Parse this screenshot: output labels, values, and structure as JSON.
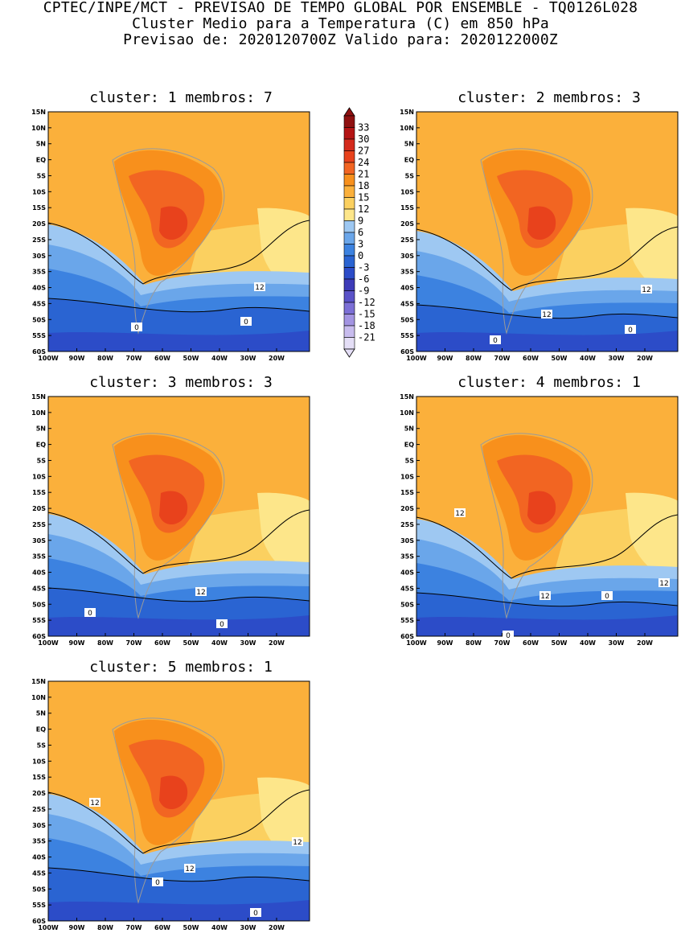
{
  "header": {
    "line1": "CPTEC/INPE/MCT - PREVISAO DE TEMPO GLOBAL POR ENSEMBLE - TQ0126L028",
    "line2": "Cluster Medio para a Temperatura (C) em 850 hPa",
    "line3": "Previsao de: 2020120700Z   Valido para: 2020122000Z"
  },
  "axes": {
    "lat_labels": [
      "15N",
      "10N",
      "5N",
      "EQ",
      "5S",
      "10S",
      "15S",
      "20S",
      "25S",
      "30S",
      "35S",
      "40S",
      "45S",
      "50S",
      "55S",
      "60S"
    ],
    "lon_labels": [
      "100W",
      "90W",
      "80W",
      "70W",
      "60W",
      "50W",
      "40W",
      "30W",
      "20W"
    ]
  },
  "colorbar": {
    "labels": [
      "33",
      "30",
      "27",
      "24",
      "21",
      "18",
      "15",
      "12",
      "9",
      "6",
      "3",
      "0",
      "-3",
      "-6",
      "-9",
      "-12",
      "-15",
      "-18",
      "-21"
    ],
    "colors": [
      "#8f1010",
      "#b41414",
      "#d42a1c",
      "#e8421c",
      "#f26522",
      "#f8901c",
      "#fbb03b",
      "#fbd060",
      "#fde68a",
      "#9ec8f2",
      "#6aa6ea",
      "#3c82e0",
      "#2a64d2",
      "#2c4cc8",
      "#3d3bb8",
      "#5a52c8",
      "#7c6fd6",
      "#a394e2",
      "#c8bcee",
      "#e4def6"
    ]
  },
  "panels": [
    {
      "id": "1",
      "title": "cluster: 1  membros: 7",
      "contour_labels": [
        {
          "t": "12"
        },
        {
          "t": "0"
        },
        {
          "t": "0"
        }
      ]
    },
    {
      "id": "2",
      "title": "cluster: 2  membros: 3",
      "contour_labels": [
        {
          "t": "12"
        },
        {
          "t": "12"
        },
        {
          "t": "0"
        },
        {
          "t": "0"
        }
      ]
    },
    {
      "id": "3",
      "title": "cluster: 3  membros: 3",
      "contour_labels": [
        {
          "t": "12"
        },
        {
          "t": "0"
        },
        {
          "t": "0"
        }
      ]
    },
    {
      "id": "4",
      "title": "cluster: 4  membros: 1",
      "contour_labels": [
        {
          "t": "12"
        },
        {
          "t": "12"
        },
        {
          "t": "12"
        },
        {
          "t": "0"
        },
        {
          "t": "0"
        }
      ]
    },
    {
      "id": "5",
      "title": "cluster: 5  membros: 1",
      "contour_labels": [
        {
          "t": "12"
        },
        {
          "t": "12"
        },
        {
          "t": "12"
        },
        {
          "t": "0"
        },
        {
          "t": "0"
        }
      ]
    }
  ]
}
